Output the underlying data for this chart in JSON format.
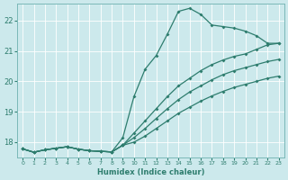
{
  "title": "",
  "xlabel": "Humidex (Indice chaleur)",
  "ylabel": "",
  "bg_color": "#cce9ec",
  "grid_color": "#ffffff",
  "line_color": "#2e7d6e",
  "xlim": [
    -0.5,
    23.5
  ],
  "ylim": [
    17.5,
    22.55
  ],
  "yticks": [
    18,
    19,
    20,
    21,
    22
  ],
  "xticks": [
    0,
    1,
    2,
    3,
    4,
    5,
    6,
    7,
    8,
    9,
    10,
    11,
    12,
    13,
    14,
    15,
    16,
    17,
    18,
    19,
    20,
    21,
    22,
    23
  ],
  "line_curvy_x": [
    0,
    1,
    2,
    3,
    4,
    5,
    6,
    7,
    8,
    9,
    10,
    11,
    12,
    13,
    14,
    15,
    16,
    17,
    18,
    19,
    20,
    21,
    22,
    23
  ],
  "line_curvy_y": [
    17.78,
    17.67,
    17.75,
    17.8,
    17.85,
    17.77,
    17.72,
    17.7,
    17.68,
    18.15,
    19.5,
    20.4,
    20.85,
    21.55,
    22.3,
    22.4,
    22.2,
    21.85,
    21.8,
    21.75,
    21.65,
    21.5,
    21.25,
    21.25
  ],
  "line_straight1_x": [
    9,
    10,
    11,
    12,
    13,
    14,
    15,
    16,
    17,
    18,
    19,
    20,
    21,
    22,
    23
  ],
  "line_straight1_y": [
    17.9,
    18.3,
    18.7,
    19.1,
    19.5,
    19.85,
    20.1,
    20.35,
    20.55,
    20.7,
    20.82,
    20.9,
    21.05,
    21.2,
    21.25
  ],
  "line_straight2_x": [
    9,
    10,
    11,
    12,
    13,
    14,
    15,
    16,
    17,
    18,
    19,
    20,
    21,
    22,
    23
  ],
  "line_straight2_y": [
    17.9,
    18.15,
    18.45,
    18.78,
    19.1,
    19.4,
    19.65,
    19.85,
    20.05,
    20.22,
    20.35,
    20.45,
    20.55,
    20.65,
    20.72
  ],
  "line_straight3_x": [
    9,
    10,
    11,
    12,
    13,
    14,
    15,
    16,
    17,
    18,
    19,
    20,
    21,
    22,
    23
  ],
  "line_straight3_y": [
    17.9,
    18.0,
    18.2,
    18.45,
    18.7,
    18.95,
    19.15,
    19.35,
    19.52,
    19.67,
    19.8,
    19.9,
    20.0,
    20.1,
    20.17
  ],
  "line_base_x": [
    0,
    1,
    2,
    3,
    4,
    5,
    6,
    7,
    8,
    9
  ],
  "line_base_y": [
    17.78,
    17.67,
    17.75,
    17.8,
    17.85,
    17.77,
    17.72,
    17.7,
    17.68,
    17.9
  ]
}
